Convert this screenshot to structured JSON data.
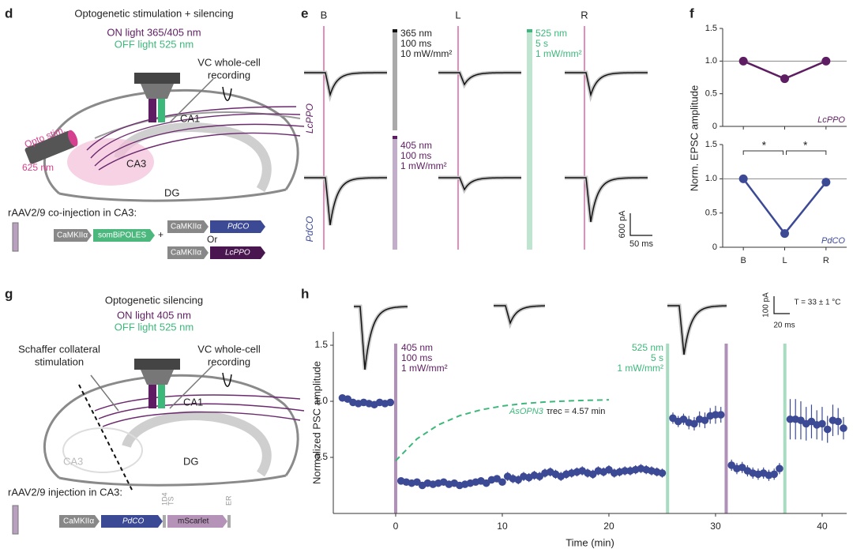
{
  "panels": {
    "d": {
      "letter": "d",
      "title": "Optogenetic stimulation + silencing",
      "on_light": "ON light 365/405 nm",
      "off_light": "OFF light 525 nm",
      "recording": [
        "VC whole-cell",
        "recording"
      ],
      "stim": [
        "Opto stim.",
        "625 nm"
      ],
      "regions": [
        "CA1",
        "CA3",
        "DG"
      ],
      "injection": "rAAV2/9 co-injection in CA3:",
      "constructs": [
        "CaMKIIα",
        "somBiPOLES",
        "+",
        "CaMKIIα",
        "PdCO",
        "Or",
        "CaMKIIα",
        "LcPPO"
      ]
    },
    "e": {
      "letter": "e",
      "conditions": [
        "B",
        "L",
        "R"
      ],
      "rows": [
        "LcPPO",
        "PdCO"
      ],
      "light_365": [
        "365 nm",
        "100 ms",
        "10 mW/mm²"
      ],
      "light_525": [
        "525 nm",
        "5 s",
        "1 mW/mm²"
      ],
      "light_405": [
        "405 nm",
        "100 ms",
        "1 mW/mm²"
      ],
      "scale": [
        "600 pA",
        "50 ms"
      ]
    },
    "f": {
      "letter": "f"
    },
    "g": {
      "letter": "g",
      "title": "Optogenetic silencing",
      "on_light": "ON light 405 nm",
      "off_light": "OFF light 525 nm",
      "stim": [
        "Schaffer collateral",
        "stimulation"
      ],
      "recording": [
        "VC whole-cell",
        "recording"
      ],
      "regions": [
        "CA1",
        "CA3",
        "DG"
      ],
      "injection": "rAAV2/9 injection in CA3:",
      "constructs": [
        "CaMKIIα",
        "PdCO",
        "1D4",
        "TS",
        "mScarlet",
        "ER"
      ]
    },
    "h": {
      "letter": "h",
      "light_405": [
        "405 nm",
        "100 ms",
        "1 mW/mm²"
      ],
      "light_525": [
        "525 nm",
        "5 s",
        "1 mW/mm²"
      ],
      "temperature": "T = 33 ± 1 °C",
      "scale": [
        "100 pA",
        "20 ms"
      ]
    }
  },
  "chart_data": [
    {
      "type": "line",
      "ylim": [
        0,
        1.5
      ],
      "yticks": [
        0,
        0.5,
        {
          "value": 1,
          "label": "1.0"
        },
        1.5
      ],
      "hline": 1,
      "categories": [
        null,
        null,
        null
      ],
      "series": [
        {
          "name": "LcPPO",
          "color": "#5e1d62",
          "values": [
            1,
            0.73,
            1
          ]
        }
      ]
    },
    {
      "type": "line",
      "ylim": [
        0,
        1.5
      ],
      "yticks": [
        0,
        0.5,
        {
          "value": 1,
          "label": "1.0"
        },
        1.5
      ],
      "hline": 1,
      "categories": [
        "B",
        "L",
        "R"
      ],
      "ylabel": "Norm. EPSC amplitude",
      "annotations": [
        "*",
        "*"
      ],
      "series": [
        {
          "name": "PdCO",
          "color": "#3c4a96",
          "values": [
            1,
            0.2,
            0.95
          ]
        }
      ]
    },
    {
      "type": "scatter",
      "xlabel": "Time (min)",
      "ylabel": "Normalized PSC amplitude",
      "xlim": [
        -5.85,
        42.3
      ],
      "ylim": [
        0,
        1.62
      ],
      "xticks": [
        0,
        10,
        20,
        30,
        40
      ],
      "yticks": [
        0.5,
        {
          "value": 1,
          "label": "1.0"
        },
        1.5
      ],
      "series": [
        {
          "color": "#3c4a96",
          "x": [
            -5,
            -4.5,
            -4,
            -3.5,
            -3,
            -2.5,
            -2,
            -1.5,
            -1,
            -0.5,
            0.5,
            1,
            1.5,
            2,
            2.5,
            3,
            3.5,
            4,
            4.5,
            5,
            5.5,
            6,
            6.5,
            7,
            7.5,
            8,
            8.5,
            9,
            9.5,
            10,
            10.5,
            11,
            11.5,
            12,
            12.5,
            13,
            13.5,
            14,
            14.5,
            15,
            15.5,
            16,
            16.5,
            17,
            17.5,
            18,
            18.5,
            19,
            19.5,
            20,
            20.5,
            21,
            21.5,
            22,
            22.5,
            23,
            23.5,
            24,
            24.5,
            25,
            26,
            26.5,
            27,
            27.5,
            28,
            28.5,
            29,
            29.5,
            30,
            30.5,
            31.5,
            32,
            32.5,
            33,
            33.5,
            34,
            34.5,
            35,
            35.5,
            36,
            37,
            37.5,
            38,
            38.5,
            39,
            39.5,
            40,
            40.5,
            41,
            41.5,
            42
          ],
          "values": [
            1.03,
            1.02,
            0.99,
            0.98,
            0.99,
            0.98,
            0.97,
            0.99,
            0.98,
            0.99,
            0.29,
            0.28,
            0.27,
            0.28,
            0.25,
            0.27,
            0.26,
            0.27,
            0.28,
            0.26,
            0.27,
            0.25,
            0.26,
            0.27,
            0.28,
            0.29,
            0.27,
            0.3,
            0.31,
            0.28,
            0.33,
            0.31,
            0.3,
            0.33,
            0.32,
            0.34,
            0.33,
            0.36,
            0.37,
            0.35,
            0.33,
            0.35,
            0.36,
            0.37,
            0.38,
            0.36,
            0.35,
            0.38,
            0.37,
            0.39,
            0.36,
            0.37,
            0.38,
            0.38,
            0.39,
            0.4,
            0.39,
            0.38,
            0.37,
            0.36,
            0.85,
            0.82,
            0.84,
            0.81,
            0.8,
            0.84,
            0.83,
            0.87,
            0.88,
            0.88,
            0.43,
            0.4,
            0.41,
            0.38,
            0.36,
            0.35,
            0.36,
            0.34,
            0.35,
            0.4,
            0.84,
            0.84,
            0.83,
            0.8,
            0.82,
            0.79,
            0.8,
            0.75,
            0.83,
            0.82,
            0.76
          ],
          "errors": [
            0.02,
            0.02,
            0.02,
            0.02,
            0.02,
            0.02,
            0.02,
            0.02,
            0.02,
            0.02,
            0.03,
            0.03,
            0.03,
            0.03,
            0.03,
            0.03,
            0.03,
            0.03,
            0.03,
            0.03,
            0.03,
            0.03,
            0.03,
            0.03,
            0.03,
            0.03,
            0.03,
            0.03,
            0.03,
            0.03,
            0.04,
            0.04,
            0.04,
            0.04,
            0.04,
            0.04,
            0.04,
            0.04,
            0.04,
            0.04,
            0.04,
            0.04,
            0.04,
            0.04,
            0.04,
            0.04,
            0.04,
            0.04,
            0.04,
            0.04,
            0.04,
            0.04,
            0.04,
            0.04,
            0.04,
            0.04,
            0.04,
            0.04,
            0.04,
            0.04,
            0.05,
            0.05,
            0.05,
            0.06,
            0.06,
            0.07,
            0.07,
            0.07,
            0.08,
            0.07,
            0.05,
            0.05,
            0.05,
            0.05,
            0.05,
            0.05,
            0.05,
            0.05,
            0.05,
            0.05,
            0.18,
            0.18,
            0.17,
            0.15,
            0.15,
            0.13,
            0.15,
            0.12,
            0.14,
            0.12,
            0.1
          ]
        }
      ],
      "fit": {
        "color": "#3cb87a",
        "label": "AsOPN3",
        "tau_label": "τrec = 4.57 min",
        "x": [
          0,
          2,
          4,
          6,
          8,
          10,
          12,
          14,
          16,
          18,
          20
        ],
        "values": [
          0.47,
          0.665,
          0.79,
          0.872,
          0.924,
          0.958,
          0.98,
          0.994,
          1.003,
          1.009,
          1.013
        ]
      },
      "stimuli": [
        {
          "x": 0,
          "color": "#b08fb8"
        },
        {
          "x": 25.5,
          "color": "#a8dcc0"
        },
        {
          "x": 31,
          "color": "#b08fb8"
        },
        {
          "x": 36.5,
          "color": "#a8dcc0"
        }
      ]
    }
  ]
}
